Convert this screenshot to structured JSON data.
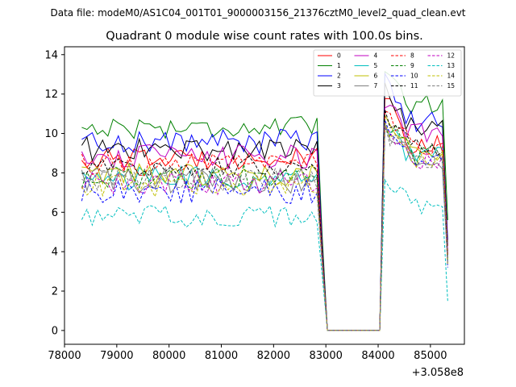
{
  "suptitle": "Data file: modeM0/AS1C04_001T01_9000003156_21376cztM0_level2_quad_clean.evt",
  "chart_data": {
    "type": "line",
    "title": "Quadrant 0 module wise count rates with 100.0s bins.",
    "xlabel": "",
    "ylabel": "",
    "x_offset_label": "+3.058e8",
    "xlim": [
      78000,
      85650
    ],
    "ylim": [
      -0.7,
      14.4
    ],
    "xticks": [
      78000,
      79000,
      80000,
      81000,
      82000,
      83000,
      84000,
      85000
    ],
    "xtick_labels": [
      "78000",
      "79000",
      "80000",
      "81000",
      "82000",
      "83000",
      "84000",
      "85000"
    ],
    "yticks": [
      0,
      2,
      4,
      6,
      8,
      10,
      12,
      14
    ],
    "ytick_labels": [
      "0",
      "2",
      "4",
      "6",
      "8",
      "10",
      "12",
      "14"
    ],
    "grid": false,
    "legend_position": "top-right",
    "legend_columns": 4,
    "segments": {
      "first": {
        "x_start": 78330,
        "x_end": 82830,
        "step": 100
      },
      "gap": {
        "x": [
          82930,
          83030,
          84030
        ]
      },
      "second": {
        "x_start": 84130,
        "x_end": 85330,
        "step": 100
      }
    },
    "series": [
      {
        "name": "0",
        "color": "#ff0000",
        "dash": "solid",
        "level1": 8.7,
        "jitter": 0.35,
        "gap_start": 3.5,
        "peak": 11.9,
        "level2": 9.4,
        "end": 3.9
      },
      {
        "name": "1",
        "color": "#008000",
        "dash": "solid",
        "level1": 10.3,
        "jitter": 0.35,
        "gap_start": 4.8,
        "peak": 13.5,
        "level2": 11.5,
        "end": 5.6
      },
      {
        "name": "2",
        "color": "#0000ff",
        "dash": "solid",
        "level1": 9.6,
        "jitter": 0.4,
        "gap_start": 4.3,
        "peak": 12.6,
        "level2": 10.6,
        "end": 4.6
      },
      {
        "name": "3",
        "color": "#000000",
        "dash": "solid",
        "level1": 9.2,
        "jitter": 0.4,
        "gap_start": 4.2,
        "peak": 12.4,
        "level2": 10.3,
        "end": 4.3
      },
      {
        "name": "4",
        "color": "#c000c0",
        "dash": "solid",
        "level1": 8.8,
        "jitter": 0.4,
        "gap_start": 4.0,
        "peak": 11.4,
        "level2": 10.0,
        "end": 4.0
      },
      {
        "name": "5",
        "color": "#00bfbf",
        "dash": "solid",
        "level1": 7.7,
        "jitter": 0.4,
        "gap_start": 3.6,
        "peak": 10.7,
        "level2": 8.8,
        "end": 3.5
      },
      {
        "name": "6",
        "color": "#bfbf00",
        "dash": "solid",
        "level1": 7.9,
        "jitter": 0.35,
        "gap_start": 3.6,
        "peak": 10.5,
        "level2": 9.0,
        "end": 3.6
      },
      {
        "name": "7",
        "color": "#808080",
        "dash": "solid",
        "level1": 7.6,
        "jitter": 0.4,
        "gap_start": 3.5,
        "peak": 10.3,
        "level2": 8.7,
        "end": 3.4
      },
      {
        "name": "8",
        "color": "#ff0000",
        "dash": "dashed",
        "level1": 8.4,
        "jitter": 0.35,
        "gap_start": 3.8,
        "peak": 11.2,
        "level2": 9.4,
        "end": 3.8
      },
      {
        "name": "9",
        "color": "#008000",
        "dash": "dashed",
        "level1": 7.8,
        "jitter": 0.4,
        "gap_start": 3.6,
        "peak": 10.6,
        "level2": 8.9,
        "end": 3.6
      },
      {
        "name": "10",
        "color": "#0000ff",
        "dash": "dashed",
        "level1": 7.1,
        "jitter": 0.45,
        "gap_start": 3.3,
        "peak": 10.1,
        "level2": 8.4,
        "end": 3.2
      },
      {
        "name": "11",
        "color": "#000000",
        "dash": "dashed",
        "level1": 8.3,
        "jitter": 0.35,
        "gap_start": 3.8,
        "peak": 11.0,
        "level2": 9.3,
        "end": 3.7
      },
      {
        "name": "12",
        "color": "#c000c0",
        "dash": "dashed",
        "level1": 7.5,
        "jitter": 0.4,
        "gap_start": 3.5,
        "peak": 10.3,
        "level2": 8.5,
        "end": 3.4
      },
      {
        "name": "13",
        "color": "#00bfbf",
        "dash": "dashed",
        "level1": 5.8,
        "jitter": 0.35,
        "gap_start": 2.8,
        "peak": 7.9,
        "level2": 6.4,
        "end": 1.5
      },
      {
        "name": "14",
        "color": "#bfbf00",
        "dash": "dashed",
        "level1": 7.4,
        "jitter": 0.4,
        "gap_start": 3.4,
        "peak": 10.0,
        "level2": 8.6,
        "end": 3.3
      },
      {
        "name": "15",
        "color": "#808080",
        "dash": "dashed",
        "level1": 7.7,
        "jitter": 0.4,
        "gap_start": 3.5,
        "peak": 10.2,
        "level2": 8.7,
        "end": 3.4
      }
    ]
  }
}
